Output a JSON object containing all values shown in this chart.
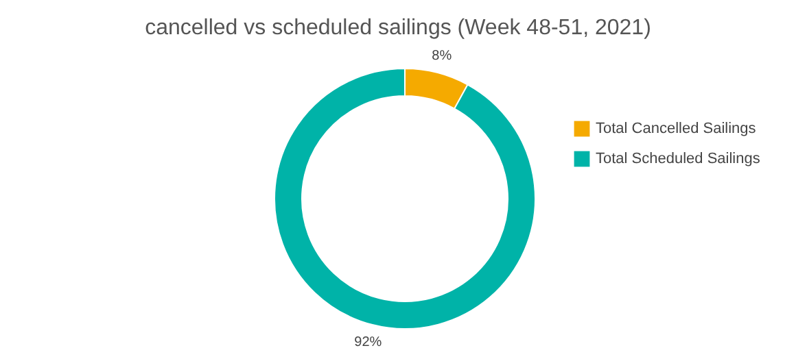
{
  "chart_data": {
    "type": "donut",
    "title": "cancelled vs scheduled sailings (Week 48-51, 2021)",
    "categories": [
      "Total Cancelled Sailings",
      "Total Scheduled Sailings"
    ],
    "values": [
      8,
      92
    ],
    "colors": [
      "#f5aa00",
      "#00b3a8"
    ],
    "value_labels": [
      "8%",
      "92%"
    ],
    "legend": "right"
  }
}
